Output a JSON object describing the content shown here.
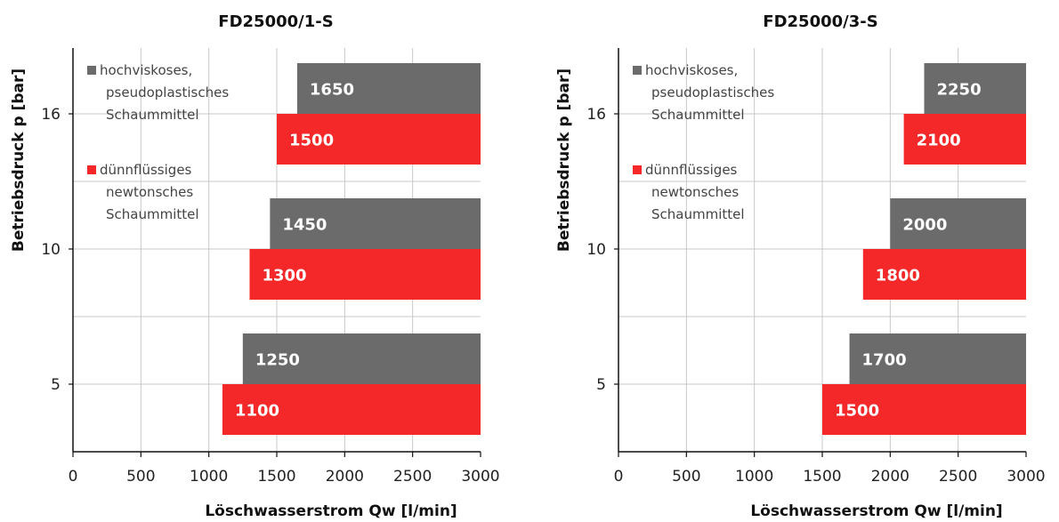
{
  "chart_data": [
    {
      "type": "bar",
      "orientation": "horizontal",
      "title": "FD25000/1-S",
      "xlabel": "Löschwasserstrom Qw [l/min]",
      "ylabel": "Betriebsdruck p [bar]",
      "categories": [
        "16",
        "10",
        "5"
      ],
      "xlim": [
        0,
        3000
      ],
      "xticks": [
        "0",
        "500",
        "1000",
        "1500",
        "2000",
        "2500",
        "3000"
      ],
      "series": [
        {
          "name": "hochviskoses, pseudoplastisches Schaummittel",
          "color": "#6b6b6b",
          "values": [
            1650,
            1450,
            1250
          ]
        },
        {
          "name": "dünnflüssiges newtonsches Schaummittel",
          "color": "#f42828",
          "values": [
            1500,
            1300,
            1100
          ]
        }
      ],
      "legend_lines": [
        [
          "hochviskoses,",
          "pseudoplastisches",
          "Schaummittel"
        ],
        [
          "dünnflüssiges",
          "newtonsches",
          "Schaummittel"
        ]
      ],
      "grid": true,
      "legend_position": "top-left"
    },
    {
      "type": "bar",
      "orientation": "horizontal",
      "title": "FD25000/3-S",
      "xlabel": "Löschwasserstrom Qw [l/min]",
      "ylabel": "Betriebsdruck p [bar]",
      "categories": [
        "16",
        "10",
        "5"
      ],
      "xlim": [
        0,
        3000
      ],
      "xticks": [
        "0",
        "500",
        "1000",
        "1500",
        "2000",
        "2500",
        "3000"
      ],
      "series": [
        {
          "name": "hochviskoses, pseudoplastisches Schaummittel",
          "color": "#6b6b6b",
          "values": [
            2250,
            2000,
            1700
          ]
        },
        {
          "name": "dünnflüssiges newtonsches Schaummittel",
          "color": "#f42828",
          "values": [
            2100,
            1800,
            1500
          ]
        }
      ],
      "legend_lines": [
        [
          "hochviskoses,",
          "pseudoplastisches",
          "Schaummittel"
        ],
        [
          "dünnflüssiges",
          "newtonsches",
          "Schaummittel"
        ]
      ],
      "grid": true,
      "legend_position": "top-left"
    }
  ]
}
